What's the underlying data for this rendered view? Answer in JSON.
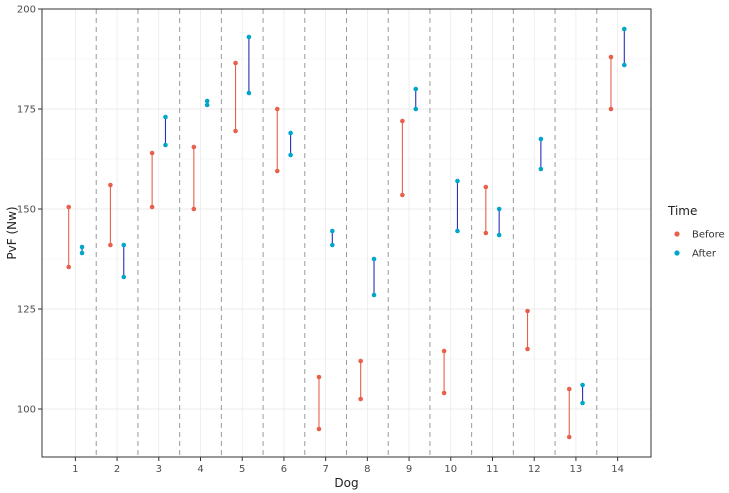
{
  "chart_data": {
    "type": "scatter",
    "xlabel": "Dog",
    "ylabel": "PvF (Nw)",
    "ylim": [
      88,
      200
    ],
    "y_ticks": [
      100,
      125,
      150,
      175,
      200
    ],
    "categories": [
      "1",
      "2",
      "3",
      "4",
      "5",
      "6",
      "7",
      "8",
      "9",
      "10",
      "11",
      "12",
      "13",
      "14"
    ],
    "grid": true,
    "separators": "dashed vertical lines between dogs",
    "legend": {
      "title": "Time",
      "position": "right",
      "entries": [
        {
          "label": "Before",
          "color": "#e8604c"
        },
        {
          "label": "After",
          "color": "#00a6c8"
        }
      ]
    },
    "series": [
      {
        "name": "Before",
        "color": "#e8604c",
        "segment_color": "#e8604c",
        "ranges": [
          [
            135.5,
            150.5
          ],
          [
            141,
            156
          ],
          [
            150.5,
            164
          ],
          [
            150,
            165.5
          ],
          [
            169.5,
            186.5
          ],
          [
            159.5,
            175
          ],
          [
            95,
            108
          ],
          [
            102.5,
            112
          ],
          [
            153.5,
            172
          ],
          [
            104,
            114.5
          ],
          [
            144,
            155.5
          ],
          [
            115,
            124.5
          ],
          [
            93,
            105
          ],
          [
            175,
            188
          ]
        ]
      },
      {
        "name": "After",
        "color": "#00a6c8",
        "segment_color": "#2233bb",
        "ranges": [
          [
            139,
            140.5
          ],
          [
            133,
            141
          ],
          [
            166,
            173
          ],
          [
            176,
            177
          ],
          [
            179,
            193
          ],
          [
            163.5,
            169
          ],
          [
            141,
            144.5
          ],
          [
            128.5,
            137.5
          ],
          [
            175,
            180
          ],
          [
            144.5,
            157
          ],
          [
            143.5,
            150
          ],
          [
            160,
            167.5
          ],
          [
            101.5,
            106
          ],
          [
            186,
            195
          ]
        ]
      }
    ]
  }
}
